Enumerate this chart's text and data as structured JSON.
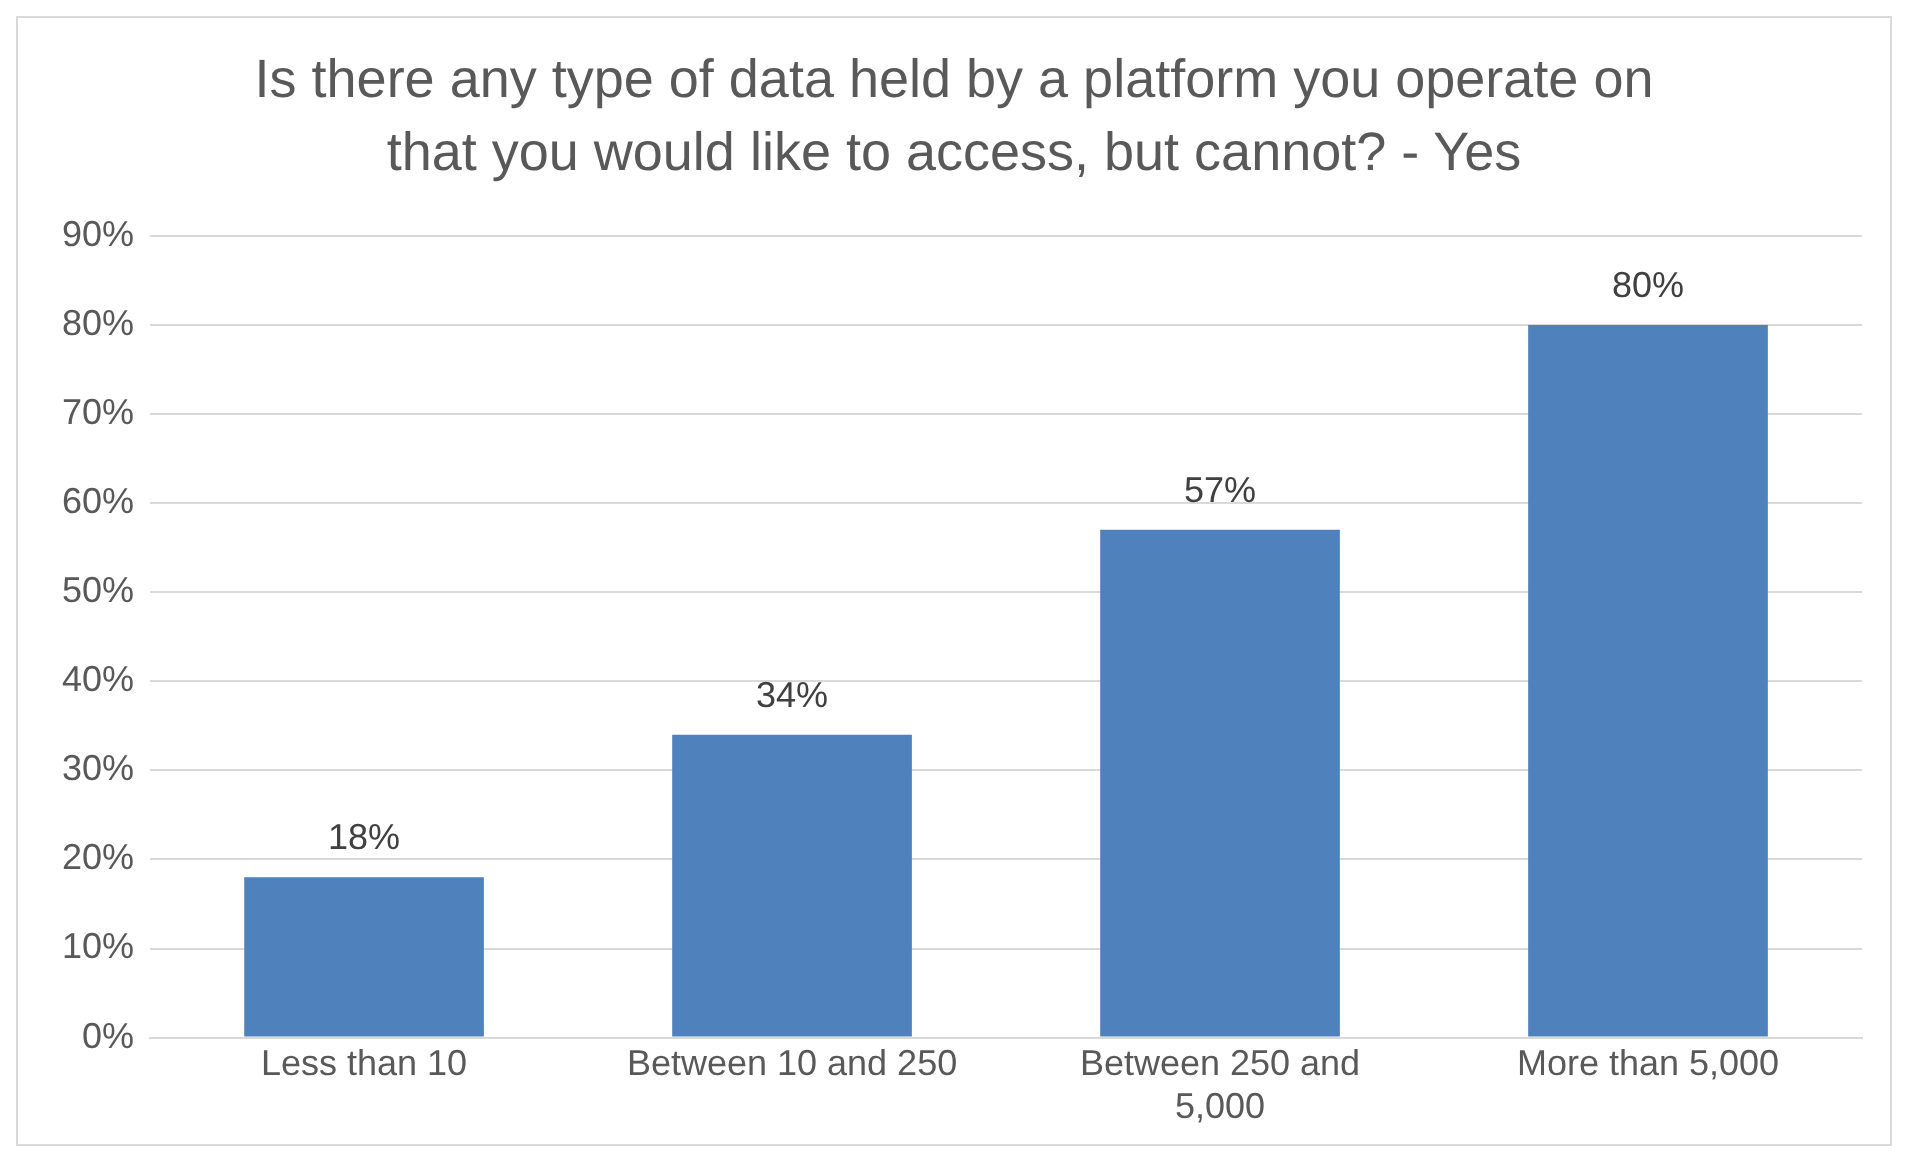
{
  "chart_data": {
    "type": "bar",
    "title": "Is there any type of data held by a platform you operate on that you would like to access, but cannot? - Yes",
    "categories": [
      "Less than 10",
      "Between 10 and 250",
      "Between 250 and 5,000",
      "More than 5,000"
    ],
    "values": [
      18,
      34,
      57,
      80
    ],
    "value_labels": [
      "18%",
      "34%",
      "57%",
      "80%"
    ],
    "color": "#4f81bd",
    "ylim": [
      0,
      90
    ],
    "yticks": [
      {
        "value": 0,
        "label": "0%"
      },
      {
        "value": 10,
        "label": "10%"
      },
      {
        "value": 20,
        "label": "20%"
      },
      {
        "value": 30,
        "label": "30%"
      },
      {
        "value": 40,
        "label": "40%"
      },
      {
        "value": 50,
        "label": "50%"
      },
      {
        "value": 60,
        "label": "60%"
      },
      {
        "value": 70,
        "label": "70%"
      },
      {
        "value": 80,
        "label": "80%"
      },
      {
        "value": 90,
        "label": "90%"
      }
    ],
    "grid": "y",
    "legend": false
  }
}
